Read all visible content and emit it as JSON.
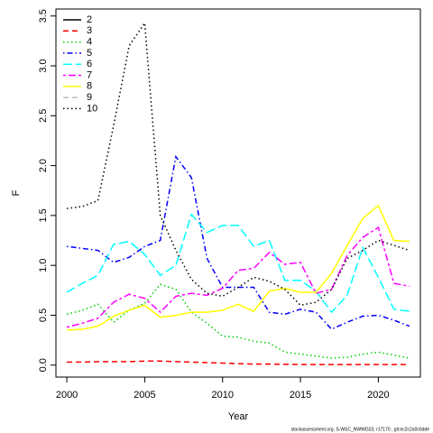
{
  "chart_data": {
    "type": "line",
    "xlabel": "Year",
    "ylabel": "F",
    "footer": "stockassessment.org, S-WSC_NWWG23, r17170 , git:ec2c2a0c6dde",
    "x": [
      2000,
      2001,
      2002,
      2003,
      2004,
      2005,
      2006,
      2007,
      2008,
      2009,
      2010,
      2011,
      2012,
      2013,
      2014,
      2015,
      2016,
      2017,
      2018,
      2019,
      2020,
      2021,
      2022
    ],
    "xlim": [
      1999.3,
      2022.7
    ],
    "xticks": [
      2000,
      2005,
      2010,
      2015,
      2020
    ],
    "ylim": [
      -0.12,
      3.57
    ],
    "yticks": [
      {
        "value": 0,
        "label": "0.0"
      },
      0.5,
      {
        "value": 1,
        "label": "1.0"
      },
      1.5,
      {
        "value": 2,
        "label": "2.0"
      },
      2.5,
      {
        "value": 3,
        "label": "3.0"
      },
      3.5
    ],
    "legend": "top-left",
    "series": [
      {
        "name": "2",
        "color": "#000000",
        "dash": "solid",
        "values": [
          null,
          null,
          null,
          null,
          null,
          null,
          null,
          null,
          null,
          null,
          null,
          null,
          null,
          null,
          null,
          null,
          null,
          null,
          null,
          null,
          null,
          null,
          null
        ]
      },
      {
        "name": "3",
        "color": "#ff0000",
        "dash": "dashed",
        "values": [
          0.03,
          0.03,
          0.035,
          0.035,
          0.035,
          0.04,
          0.04,
          0.035,
          0.03,
          0.025,
          0.02,
          0.015,
          0.01,
          0.01,
          0.008,
          0.006,
          0.005,
          0.005,
          0.005,
          0.005,
          0.005,
          0.005,
          0.005
        ]
      },
      {
        "name": "4",
        "color": "#00cd00",
        "dash": "dotted",
        "values": [
          0.51,
          0.55,
          0.61,
          0.43,
          0.55,
          0.62,
          0.81,
          0.76,
          0.53,
          0.42,
          0.29,
          0.28,
          0.24,
          0.22,
          0.13,
          0.11,
          0.09,
          0.07,
          0.08,
          0.11,
          0.13,
          0.1,
          0.07
        ]
      },
      {
        "name": "5",
        "color": "#0000ff",
        "dash": "dotdash",
        "values": [
          1.19,
          1.17,
          1.15,
          1.03,
          1.08,
          1.19,
          1.25,
          2.09,
          1.88,
          1.07,
          0.78,
          0.78,
          0.78,
          0.53,
          0.51,
          0.56,
          0.53,
          0.36,
          0.43,
          0.49,
          0.5,
          0.45,
          0.39
        ]
      },
      {
        "name": "6",
        "color": "#00ffff",
        "dash": "longdash",
        "values": [
          0.73,
          0.82,
          0.9,
          1.21,
          1.24,
          1.11,
          0.9,
          1.0,
          1.51,
          1.33,
          1.4,
          1.4,
          1.19,
          1.25,
          0.85,
          0.85,
          0.74,
          0.53,
          0.7,
          1.18,
          0.88,
          0.56,
          0.54
        ]
      },
      {
        "name": "7",
        "color": "#ff00ff",
        "dash": "twodash",
        "values": [
          0.38,
          0.42,
          0.47,
          0.63,
          0.71,
          0.67,
          0.53,
          0.69,
          0.72,
          0.7,
          0.77,
          0.95,
          0.97,
          1.13,
          1.01,
          1.03,
          0.72,
          0.76,
          1.1,
          1.28,
          1.38,
          0.82,
          0.79
        ]
      },
      {
        "name": "8",
        "color": "#ffff00",
        "dash": "solid",
        "values": [
          0.35,
          0.36,
          0.39,
          0.49,
          0.55,
          0.6,
          0.48,
          0.5,
          0.53,
          0.53,
          0.55,
          0.61,
          0.54,
          0.74,
          0.77,
          0.73,
          0.73,
          0.92,
          1.2,
          1.47,
          1.6,
          1.25,
          1.24
        ]
      },
      {
        "name": "9",
        "color": "#bebebe",
        "dash": "dashed",
        "values": [
          null,
          null,
          null,
          null,
          null,
          null,
          null,
          null,
          null,
          null,
          null,
          null,
          null,
          null,
          null,
          null,
          null,
          null,
          null,
          null,
          null,
          null,
          null
        ]
      },
      {
        "name": "10",
        "color": "#000000",
        "dash": "dotted",
        "values": [
          1.57,
          1.59,
          1.65,
          2.4,
          3.2,
          3.43,
          1.5,
          1.15,
          0.86,
          0.72,
          0.69,
          0.78,
          0.88,
          0.84,
          0.76,
          0.6,
          0.63,
          0.76,
          1.07,
          1.15,
          1.25,
          1.2,
          1.15
        ]
      }
    ]
  }
}
